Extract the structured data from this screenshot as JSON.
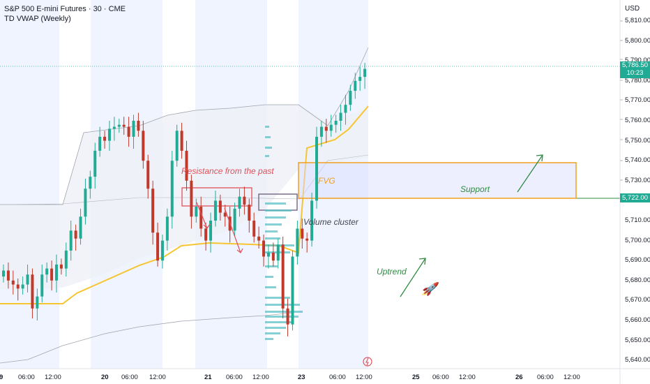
{
  "header": {
    "title": "S&P 500 E-mini Futures · 30 · CME",
    "indicator": "TD VWAP (Weekly)",
    "currency": "USD"
  },
  "price_axis": {
    "ticks": [
      "5,810.00",
      "5,800.00",
      "5,790.00",
      "5,780.00",
      "5,770.00",
      "5,760.00",
      "5,750.00",
      "5,740.00",
      "5,730.00",
      "5,710.00",
      "5,700.00",
      "5,690.00",
      "5,680.00",
      "5,670.00",
      "5,660.00",
      "5,650.00",
      "5,640.00"
    ],
    "last_price": "5,786.50",
    "countdown": "10:23",
    "support_price": "5,722.00"
  },
  "time_axis": {
    "ticks": [
      {
        "label": "9",
        "bold": true
      },
      {
        "label": "06:00",
        "bold": false
      },
      {
        "label": "12:00",
        "bold": false
      },
      {
        "label": "20",
        "bold": true
      },
      {
        "label": "06:00",
        "bold": false
      },
      {
        "label": "12:00",
        "bold": false
      },
      {
        "label": "21",
        "bold": true
      },
      {
        "label": "06:00",
        "bold": false
      },
      {
        "label": "12:00",
        "bold": false
      },
      {
        "label": "23",
        "bold": true
      },
      {
        "label": "06:00",
        "bold": false
      },
      {
        "label": "12:00",
        "bold": false
      },
      {
        "label": "25",
        "bold": true
      },
      {
        "label": "06:00",
        "bold": false
      },
      {
        "label": "12:00",
        "bold": false
      },
      {
        "label": "26",
        "bold": true
      },
      {
        "label": "06:00",
        "bold": false
      },
      {
        "label": "12:00",
        "bold": false
      }
    ]
  },
  "annotations": {
    "resistance": "Resistance from the past",
    "fvg": "FVG",
    "support": "Support",
    "volume_cluster": "Volume cluster",
    "uptrend": "Uptrend",
    "rocket": "🚀"
  },
  "colors": {
    "up": "#22ab94",
    "down": "#c0392b",
    "vwap": "#f7c531",
    "fvg_box": "#f0a020",
    "resistance_box": "#e0505a",
    "volume_profile": "#5bc0c8",
    "session_shade": "#e8efff"
  },
  "chart_data": {
    "type": "candlestick",
    "symbol": "S&P 500 E-mini Futures",
    "interval": "30",
    "exchange": "CME",
    "ylim": [
      5640,
      5815
    ],
    "last_price": 5786.5,
    "support_level": 5722.0,
    "fvg_zone": [
      5722.0,
      5740.0
    ],
    "resistance_zone": [
      5717.0,
      5728.0
    ],
    "vwap": [
      5672,
      5672,
      5673,
      5673,
      5674,
      5675,
      5678,
      5685,
      5690,
      5693,
      5694,
      5694,
      5695,
      5696,
      5698,
      5700,
      5701,
      5701,
      5700,
      5700,
      5699,
      5700,
      5701,
      5703,
      5706,
      5709,
      5711,
      5712,
      5714,
      5716,
      5718,
      5719,
      5721
    ],
    "candles_close": [
      5685,
      5680,
      5678,
      5676,
      5678,
      5683,
      5666,
      5672,
      5683,
      5686,
      5680,
      5688,
      5686,
      5695,
      5705,
      5701,
      5712,
      5726,
      5732,
      5745,
      5752,
      5750,
      5756,
      5757,
      5758,
      5757,
      5752,
      5760,
      5755,
      5740,
      5726,
      5704,
      5690,
      5700,
      5712,
      5740,
      5755,
      5745,
      5730,
      5712,
      5717,
      5706,
      5700,
      5710,
      5720,
      5714,
      5712,
      5705,
      5716,
      5722,
      5718,
      5710,
      5702,
      5700,
      5692,
      5694,
      5690,
      5698,
      5666,
      5658,
      5692,
      5706,
      5701,
      5700,
      5720,
      5752,
      5757,
      5755,
      5758,
      5760,
      5764,
      5768,
      5775,
      5780,
      5782,
      5786
    ]
  }
}
